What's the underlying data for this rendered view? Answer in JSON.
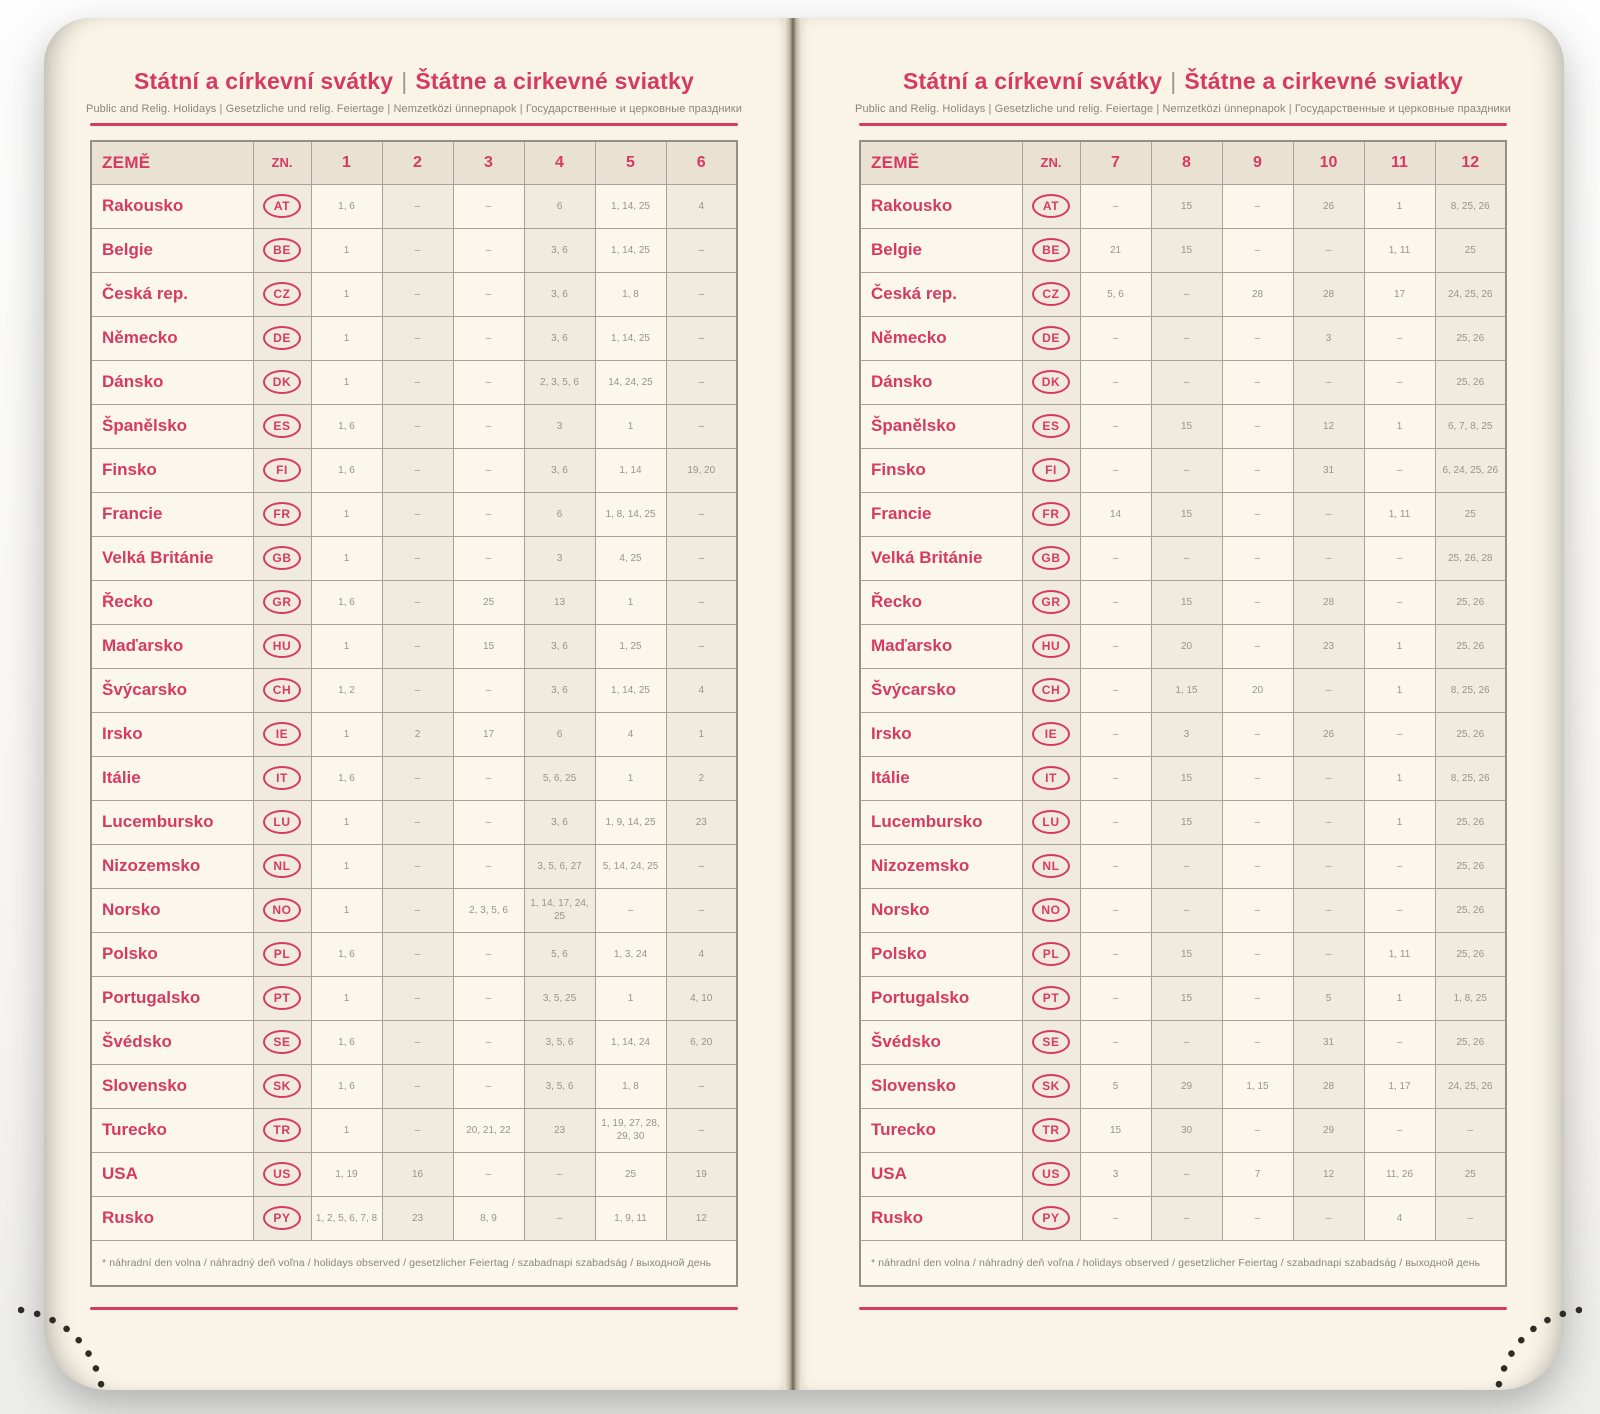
{
  "header": {
    "title_cz": "Státní a církevní svátky",
    "title_sep": "|",
    "title_sk": "Štátne a cirkevné sviatky",
    "subtitle": "Public and Relig. Holidays | Gesetzliche und relig. Feiertage | Nemzetközi ünnepnapok | Государственные и церковные праздники",
    "footnote": "* náhradní den volna / náhradný deň voľna / holidays observed / gesetzlicher Feiertag / szabadnapi szabadság / выходной день"
  },
  "colors": {
    "accent": "#d63a64",
    "page_background": "#faf4e7",
    "cell_shade": "#f1ebdd",
    "value_text": "#98948a"
  },
  "tables": [
    {
      "id": "months-1-6",
      "col_country": "ZEMĚ",
      "col_code": "ZN.",
      "months": [
        "1",
        "2",
        "3",
        "4",
        "5",
        "6"
      ],
      "rows": [
        {
          "country": "Rakousko",
          "code": "AT",
          "values": [
            "1, 6",
            "–",
            "–",
            "6",
            "1, 14, 25",
            "4"
          ]
        },
        {
          "country": "Belgie",
          "code": "BE",
          "values": [
            "1",
            "–",
            "–",
            "3, 6",
            "1, 14, 25",
            "–"
          ]
        },
        {
          "country": "Česká rep.",
          "code": "CZ",
          "values": [
            "1",
            "–",
            "–",
            "3, 6",
            "1, 8",
            "–"
          ]
        },
        {
          "country": "Německo",
          "code": "DE",
          "values": [
            "1",
            "–",
            "–",
            "3, 6",
            "1, 14, 25",
            "–"
          ]
        },
        {
          "country": "Dánsko",
          "code": "DK",
          "values": [
            "1",
            "–",
            "–",
            "2, 3, 5, 6",
            "14, 24, 25",
            "–"
          ]
        },
        {
          "country": "Španělsko",
          "code": "ES",
          "values": [
            "1, 6",
            "–",
            "–",
            "3",
            "1",
            "–"
          ]
        },
        {
          "country": "Finsko",
          "code": "FI",
          "values": [
            "1, 6",
            "–",
            "–",
            "3, 6",
            "1, 14",
            "19, 20"
          ]
        },
        {
          "country": "Francie",
          "code": "FR",
          "values": [
            "1",
            "–",
            "–",
            "6",
            "1, 8, 14, 25",
            "–"
          ]
        },
        {
          "country": "Velká Británie",
          "code": "GB",
          "values": [
            "1",
            "–",
            "–",
            "3",
            "4, 25",
            "–"
          ]
        },
        {
          "country": "Řecko",
          "code": "GR",
          "values": [
            "1, 6",
            "–",
            "25",
            "13",
            "1",
            "–"
          ]
        },
        {
          "country": "Maďarsko",
          "code": "HU",
          "values": [
            "1",
            "–",
            "15",
            "3, 6",
            "1, 25",
            "–"
          ]
        },
        {
          "country": "Švýcarsko",
          "code": "CH",
          "values": [
            "1, 2",
            "–",
            "–",
            "3, 6",
            "1, 14, 25",
            "4"
          ]
        },
        {
          "country": "Irsko",
          "code": "IE",
          "values": [
            "1",
            "2",
            "17",
            "6",
            "4",
            "1"
          ]
        },
        {
          "country": "Itálie",
          "code": "IT",
          "values": [
            "1, 6",
            "–",
            "–",
            "5, 6, 25",
            "1",
            "2"
          ]
        },
        {
          "country": "Lucembursko",
          "code": "LU",
          "values": [
            "1",
            "–",
            "–",
            "3, 6",
            "1, 9, 14, 25",
            "23"
          ]
        },
        {
          "country": "Nizozemsko",
          "code": "NL",
          "values": [
            "1",
            "–",
            "–",
            "3, 5, 6, 27",
            "5, 14, 24, 25",
            "–"
          ]
        },
        {
          "country": "Norsko",
          "code": "NO",
          "values": [
            "1",
            "–",
            "2, 3, 5, 6",
            "1, 14, 17, 24, 25",
            "–",
            "–"
          ]
        },
        {
          "country": "Polsko",
          "code": "PL",
          "values": [
            "1, 6",
            "–",
            "–",
            "5, 6",
            "1, 3, 24",
            "4"
          ]
        },
        {
          "country": "Portugalsko",
          "code": "PT",
          "values": [
            "1",
            "–",
            "–",
            "3, 5, 25",
            "1",
            "4, 10"
          ]
        },
        {
          "country": "Švédsko",
          "code": "SE",
          "values": [
            "1, 6",
            "–",
            "–",
            "3, 5, 6",
            "1, 14, 24",
            "6, 20"
          ]
        },
        {
          "country": "Slovensko",
          "code": "SK",
          "values": [
            "1, 6",
            "–",
            "–",
            "3, 5, 6",
            "1, 8",
            "–"
          ]
        },
        {
          "country": "Turecko",
          "code": "TR",
          "values": [
            "1",
            "–",
            "20, 21, 22",
            "23",
            "1, 19, 27, 28, 29, 30",
            "–"
          ]
        },
        {
          "country": "USA",
          "code": "US",
          "values": [
            "1, 19",
            "16",
            "–",
            "–",
            "25",
            "19"
          ]
        },
        {
          "country": "Rusko",
          "code": "PY",
          "values": [
            "1, 2, 5, 6, 7, 8",
            "23",
            "8, 9",
            "–",
            "1, 9, 11",
            "12"
          ]
        }
      ]
    },
    {
      "id": "months-7-12",
      "col_country": "ZEMĚ",
      "col_code": "ZN.",
      "months": [
        "7",
        "8",
        "9",
        "10",
        "11",
        "12"
      ],
      "rows": [
        {
          "country": "Rakousko",
          "code": "AT",
          "values": [
            "–",
            "15",
            "–",
            "26",
            "1",
            "8, 25, 26"
          ]
        },
        {
          "country": "Belgie",
          "code": "BE",
          "values": [
            "21",
            "15",
            "–",
            "–",
            "1, 11",
            "25"
          ]
        },
        {
          "country": "Česká rep.",
          "code": "CZ",
          "values": [
            "5, 6",
            "–",
            "28",
            "28",
            "17",
            "24, 25, 26"
          ]
        },
        {
          "country": "Německo",
          "code": "DE",
          "values": [
            "–",
            "–",
            "–",
            "3",
            "–",
            "25, 26"
          ]
        },
        {
          "country": "Dánsko",
          "code": "DK",
          "values": [
            "–",
            "–",
            "–",
            "–",
            "–",
            "25, 26"
          ]
        },
        {
          "country": "Španělsko",
          "code": "ES",
          "values": [
            "–",
            "15",
            "–",
            "12",
            "1",
            "6, 7, 8, 25"
          ]
        },
        {
          "country": "Finsko",
          "code": "FI",
          "values": [
            "–",
            "–",
            "–",
            "31",
            "–",
            "6, 24, 25, 26"
          ]
        },
        {
          "country": "Francie",
          "code": "FR",
          "values": [
            "14",
            "15",
            "–",
            "–",
            "1, 11",
            "25"
          ]
        },
        {
          "country": "Velká Británie",
          "code": "GB",
          "values": [
            "–",
            "–",
            "–",
            "–",
            "–",
            "25, 26, 28"
          ]
        },
        {
          "country": "Řecko",
          "code": "GR",
          "values": [
            "–",
            "15",
            "–",
            "28",
            "–",
            "25, 26"
          ]
        },
        {
          "country": "Maďarsko",
          "code": "HU",
          "values": [
            "–",
            "20",
            "–",
            "23",
            "1",
            "25, 26"
          ]
        },
        {
          "country": "Švýcarsko",
          "code": "CH",
          "values": [
            "–",
            "1, 15",
            "20",
            "–",
            "1",
            "8, 25, 26"
          ]
        },
        {
          "country": "Irsko",
          "code": "IE",
          "values": [
            "–",
            "3",
            "–",
            "26",
            "–",
            "25, 26"
          ]
        },
        {
          "country": "Itálie",
          "code": "IT",
          "values": [
            "–",
            "15",
            "–",
            "–",
            "1",
            "8, 25, 26"
          ]
        },
        {
          "country": "Lucembursko",
          "code": "LU",
          "values": [
            "–",
            "15",
            "–",
            "–",
            "1",
            "25, 26"
          ]
        },
        {
          "country": "Nizozemsko",
          "code": "NL",
          "values": [
            "–",
            "–",
            "–",
            "–",
            "–",
            "25, 26"
          ]
        },
        {
          "country": "Norsko",
          "code": "NO",
          "values": [
            "–",
            "–",
            "–",
            "–",
            "–",
            "25, 26"
          ]
        },
        {
          "country": "Polsko",
          "code": "PL",
          "values": [
            "–",
            "15",
            "–",
            "–",
            "1, 11",
            "25, 26"
          ]
        },
        {
          "country": "Portugalsko",
          "code": "PT",
          "values": [
            "–",
            "15",
            "–",
            "5",
            "1",
            "1, 8, 25"
          ]
        },
        {
          "country": "Švédsko",
          "code": "SE",
          "values": [
            "–",
            "–",
            "–",
            "31",
            "–",
            "25, 26"
          ]
        },
        {
          "country": "Slovensko",
          "code": "SK",
          "values": [
            "5",
            "29",
            "1, 15",
            "28",
            "1, 17",
            "24, 25, 26"
          ]
        },
        {
          "country": "Turecko",
          "code": "TR",
          "values": [
            "15",
            "30",
            "–",
            "29",
            "–",
            "–"
          ]
        },
        {
          "country": "USA",
          "code": "US",
          "values": [
            "3",
            "–",
            "7",
            "12",
            "11, 26",
            "25"
          ]
        },
        {
          "country": "Rusko",
          "code": "PY",
          "values": [
            "–",
            "–",
            "–",
            "–",
            "4",
            "–"
          ]
        }
      ]
    }
  ]
}
